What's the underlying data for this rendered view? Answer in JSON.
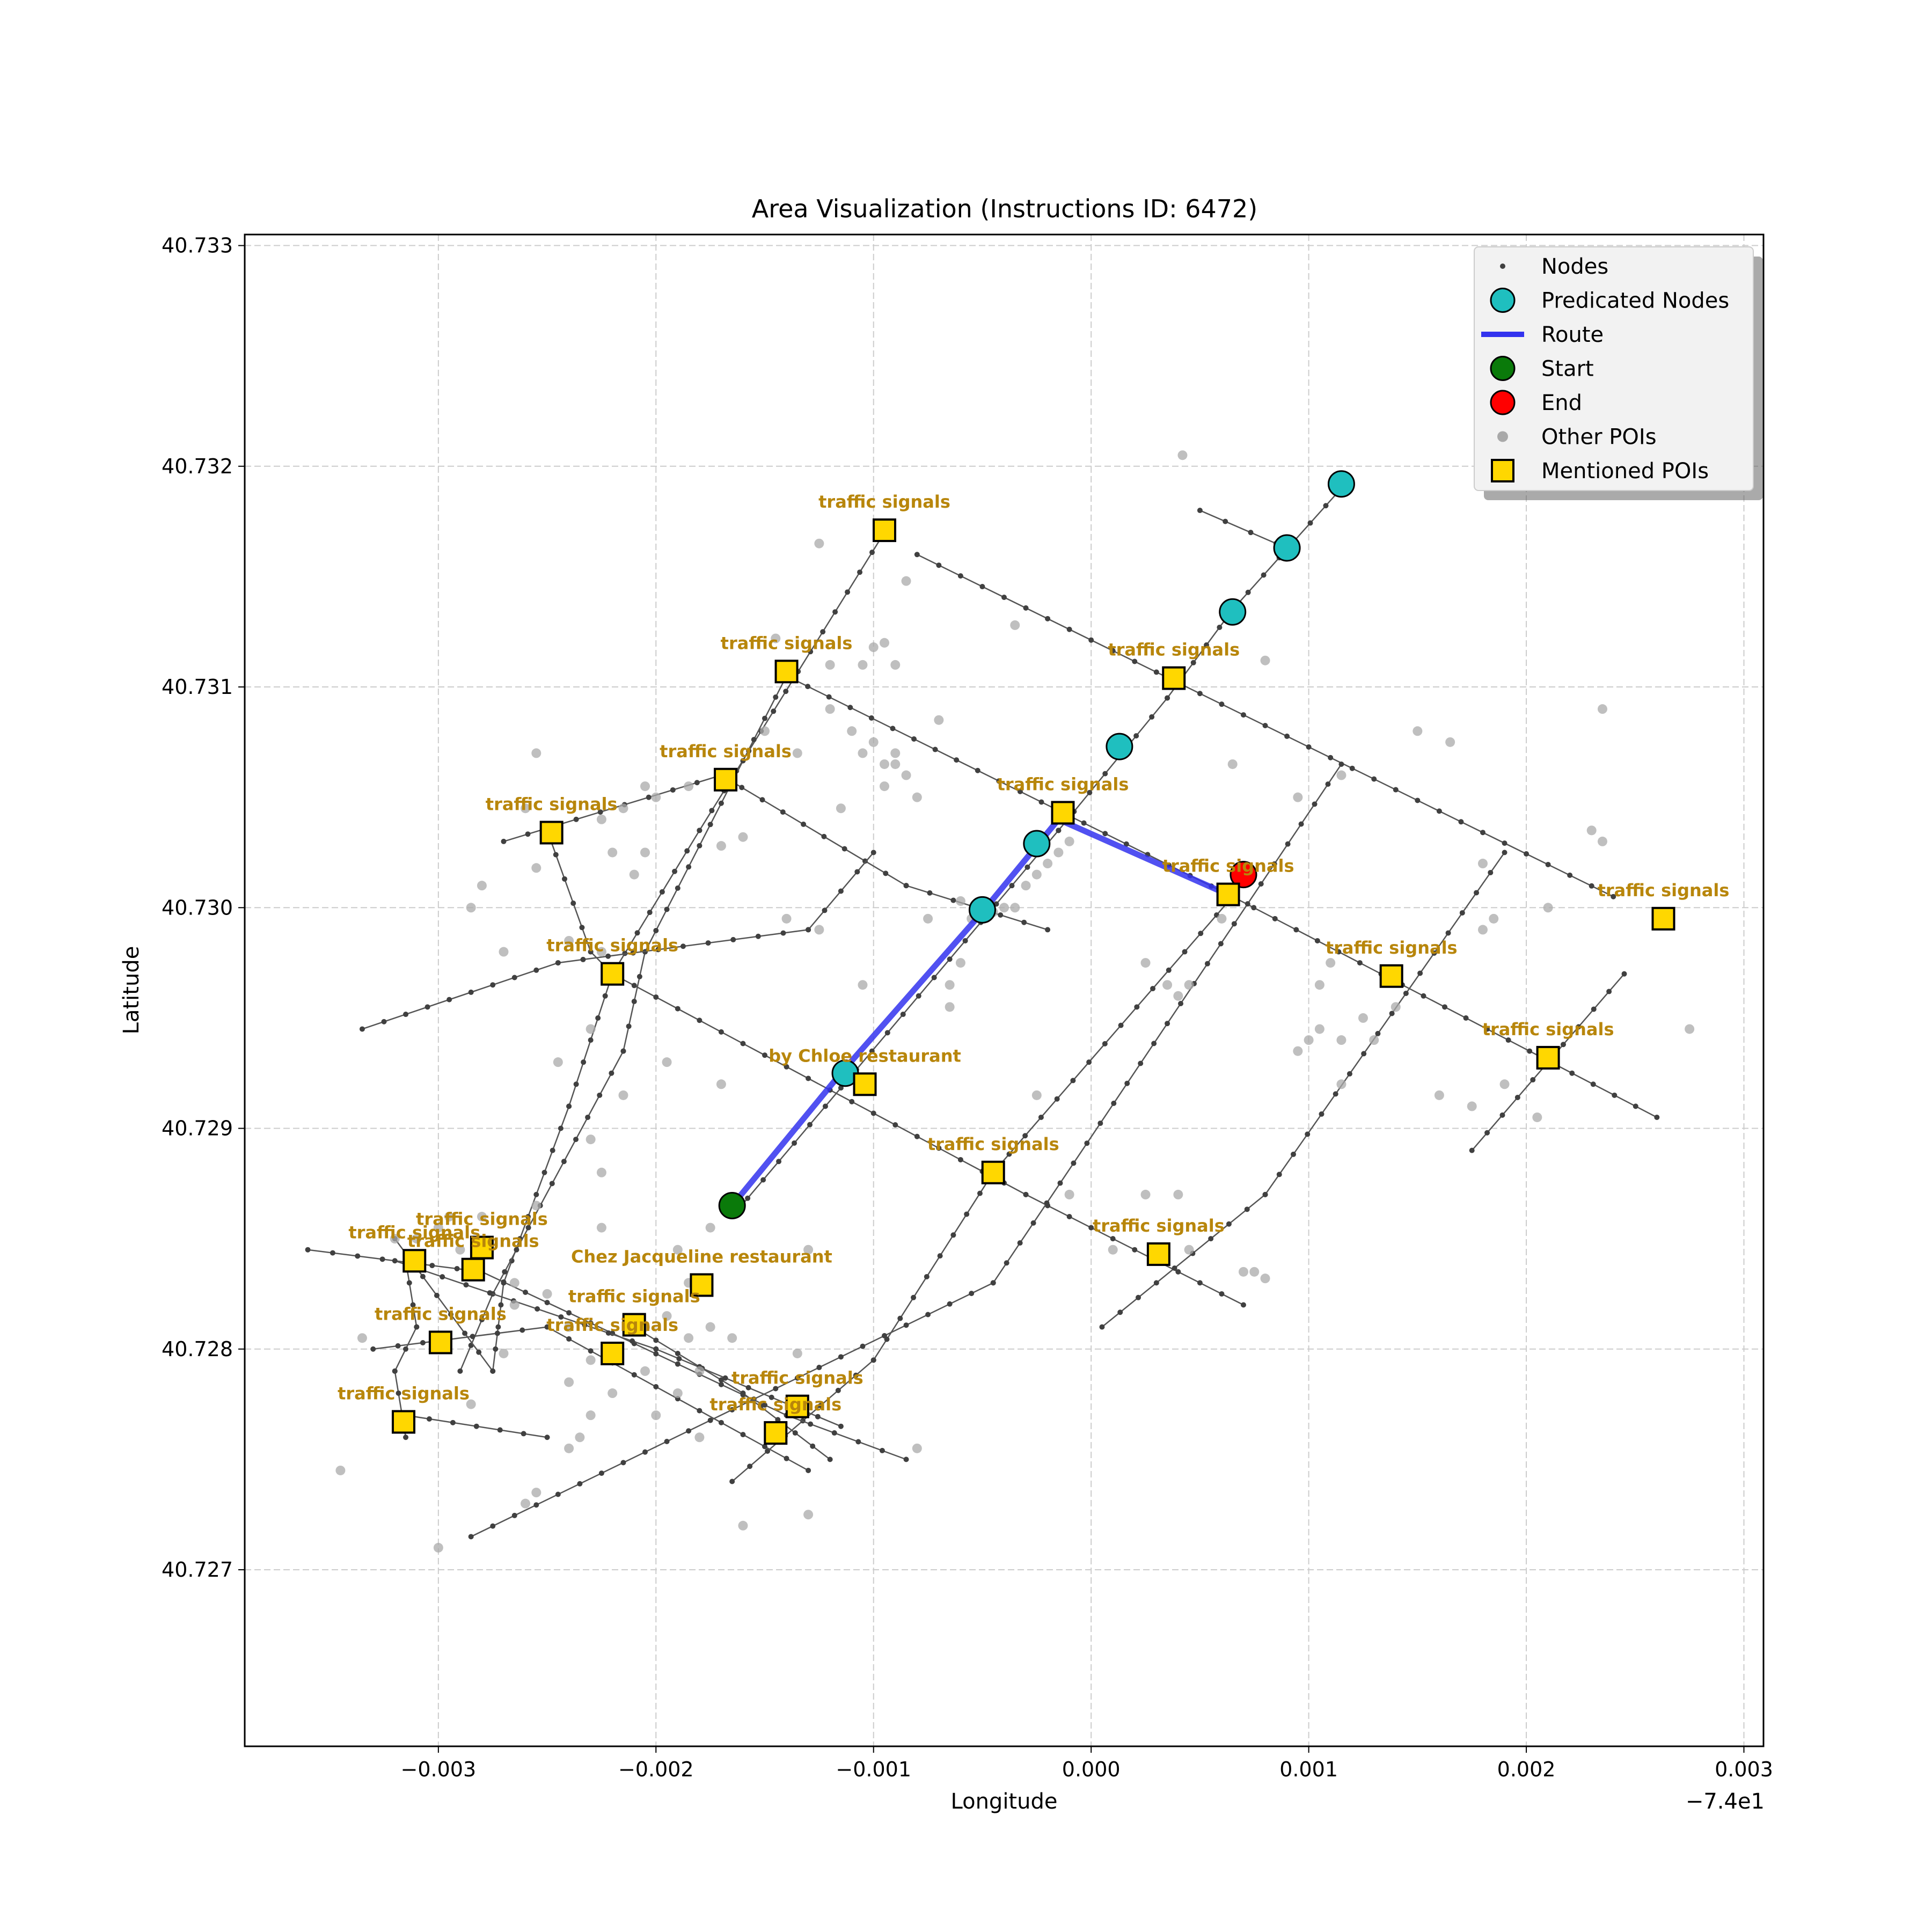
{
  "chart_data": {
    "type": "scatter",
    "title": "Area Visualization (Instructions ID: 6472)",
    "xlabel": "Longitude",
    "ylabel": "Latitude",
    "x_offset_label": "−7.4e1",
    "xlim": [
      -0.00389,
      0.00309
    ],
    "ylim": [
      40.7262,
      40.73305
    ],
    "xticks": [
      -0.003,
      -0.002,
      -0.001,
      0.0,
      0.001,
      0.002,
      0.003
    ],
    "xtick_labels": [
      "−0.003",
      "−0.002",
      "−0.001",
      "0.000",
      "0.001",
      "0.002",
      "0.003"
    ],
    "yticks": [
      40.727,
      40.728,
      40.729,
      40.73,
      40.731,
      40.732,
      40.733
    ],
    "ytick_labels": [
      "40.727",
      "40.728",
      "40.729",
      "40.730",
      "40.731",
      "40.732",
      "40.733"
    ],
    "grid": true,
    "legend_position": "top-right",
    "legend": [
      "Nodes",
      "Predicated Nodes",
      "Route",
      "Start",
      "End",
      "Other POIs",
      "Mentioned POIs"
    ],
    "colors": {
      "nodes": "#404040",
      "predicated": "#1fbfbf",
      "route": "#3333ee",
      "start": "#0a7a0a",
      "end": "#ff0000",
      "other_poi": "#a9a9a9",
      "mentioned_poi": "#ffd700",
      "poi_label": "#b8860b",
      "grid": "#cccccc"
    },
    "streets": [
      [
        [
          -0.00095,
          40.7317
        ],
        [
          -0.0018,
          40.73035
        ],
        [
          -0.0022,
          40.7297
        ],
        [
          -0.0024,
          40.7291
        ],
        [
          -0.0027,
          40.7283
        ],
        [
          -0.00275,
          40.7279
        ]
      ],
      [
        [
          -0.0014,
          40.73105
        ],
        [
          -0.00205,
          40.7298
        ],
        [
          -0.00215,
          40.72935
        ],
        [
          -0.00275,
          40.72825
        ],
        [
          -0.0029,
          40.7279
        ]
      ],
      [
        [
          -0.0027,
          40.7303
        ],
        [
          -0.0017,
          40.7306
        ],
        [
          -0.00085,
          40.7301
        ],
        [
          -0.0002,
          40.7299
        ]
      ],
      [
        [
          -0.00335,
          40.72945
        ],
        [
          -0.00245,
          40.72975
        ],
        [
          -0.0013,
          40.7299
        ],
        [
          -0.001,
          40.73025
        ]
      ],
      [
        [
          -0.0025,
          40.73035
        ],
        [
          -0.0023,
          40.7298
        ],
        [
          -0.0022,
          40.7297
        ]
      ],
      [
        [
          -0.00275,
          40.7279
        ],
        [
          -0.0032,
          40.7285
        ]
      ],
      [
        [
          -0.0008,
          40.7316
        ],
        [
          0.0024,
          40.73005
        ]
      ],
      [
        [
          -0.0014,
          40.73105
        ],
        [
          0.00065,
          40.73005
        ],
        [
          0.0026,
          40.72905
        ]
      ],
      [
        [
          -0.0022,
          40.7297
        ],
        [
          -0.0003,
          40.7287
        ],
        [
          0.0007,
          40.7282
        ]
      ],
      [
        [
          0.00115,
          40.7319
        ],
        [
          0.00065,
          40.73135
        ],
        [
          0.00035,
          40.73095
        ],
        [
          -0.00015,
          40.73035
        ],
        [
          -0.00165,
          40.7286
        ]
      ],
      [
        [
          0.0005,
          40.7318
        ],
        [
          0.00085,
          40.73165
        ]
      ],
      [
        [
          0.00065,
          40.73005
        ],
        [
          -0.00045,
          40.7288
        ],
        [
          -0.001,
          40.72795
        ],
        [
          -0.00165,
          40.7274
        ]
      ],
      [
        [
          0.00115,
          40.73065
        ],
        [
          -0.00045,
          40.7283
        ],
        [
          -0.00285,
          40.72715
        ]
      ],
      [
        [
          0.0019,
          40.73025
        ],
        [
          0.0008,
          40.7287
        ],
        [
          5e-05,
          40.7281
        ]
      ],
      [
        [
          0.00245,
          40.7297
        ],
        [
          0.00175,
          40.7289
        ]
      ],
      [
        [
          -0.0036,
          40.72845
        ],
        [
          -0.0028,
          40.72835
        ],
        [
          -0.0014,
          40.7277
        ],
        [
          -0.00085,
          40.7275
        ]
      ],
      [
        [
          -0.0032,
          40.7284
        ],
        [
          -0.002,
          40.728
        ],
        [
          -0.00115,
          40.72765
        ]
      ],
      [
        [
          -0.0033,
          40.728
        ],
        [
          -0.0025,
          40.7281
        ],
        [
          -0.0013,
          40.72745
        ]
      ],
      [
        [
          -0.00315,
          40.7284
        ],
        [
          -0.0031,
          40.7281
        ],
        [
          -0.0032,
          40.7279
        ],
        [
          -0.00315,
          40.7276
        ]
      ],
      [
        [
          -0.00315,
          40.7277
        ],
        [
          -0.0025,
          40.7276
        ]
      ],
      [
        [
          -0.0021,
          40.7281
        ],
        [
          -0.0016,
          40.7278
        ],
        [
          -0.0012,
          40.7275
        ]
      ]
    ],
    "route": [
      [
        -0.00165,
        40.72865
      ],
      [
        -0.00115,
        40.72925
      ],
      [
        -0.0005,
        40.72998
      ],
      [
        -0.00025,
        40.73028
      ],
      [
        -0.00015,
        40.7304
      ],
      [
        0.00065,
        40.73005
      ]
    ],
    "start": [
      -0.00165,
      40.72865
    ],
    "end": [
      0.0007,
      40.73015
    ],
    "predicated_nodes": [
      [
        0.00115,
        40.73192
      ],
      [
        0.0009,
        40.73163
      ],
      [
        0.00065,
        40.73134
      ],
      [
        0.00013,
        40.73073
      ],
      [
        -0.00025,
        40.73029
      ],
      [
        -0.0005,
        40.72999
      ],
      [
        -0.00113,
        40.72925
      ]
    ],
    "other_pois": [
      [
        0.00042,
        40.73205
      ],
      [
        -0.00125,
        40.73165
      ],
      [
        -0.00085,
        40.73148
      ],
      [
        -0.00035,
        40.73128
      ],
      [
        0.0008,
        40.73112
      ],
      [
        -0.00145,
        40.73122
      ],
      [
        -0.0012,
        40.7311
      ],
      [
        -0.00095,
        40.7312
      ],
      [
        -0.00105,
        40.7311
      ],
      [
        -0.001,
        40.73118
      ],
      [
        -0.0009,
        40.7311
      ],
      [
        -0.0012,
        40.7309
      ],
      [
        -0.0011,
        40.7308
      ],
      [
        -0.001,
        40.73075
      ],
      [
        -0.0007,
        40.73085
      ],
      [
        -0.0015,
        40.7308
      ],
      [
        -0.00135,
        40.7307
      ],
      [
        -0.00105,
        40.7307
      ],
      [
        -0.0009,
        40.73065
      ],
      [
        -0.00085,
        40.7306
      ],
      [
        -0.00095,
        40.73055
      ],
      [
        -0.0009,
        40.7307
      ],
      [
        -0.00095,
        40.73065
      ],
      [
        -0.0008,
        40.7305
      ],
      [
        -0.00115,
        40.73045
      ],
      [
        -0.0017,
        40.73028
      ],
      [
        -0.0016,
        40.73032
      ],
      [
        -0.00185,
        40.73055
      ],
      [
        -0.002,
        40.7305
      ],
      [
        -0.00205,
        40.73055
      ],
      [
        -0.00215,
        40.73045
      ],
      [
        -0.00225,
        40.7304
      ],
      [
        -0.00255,
        40.7307
      ],
      [
        -0.0026,
        40.73045
      ],
      [
        -0.00255,
        40.73018
      ],
      [
        -0.0028,
        40.7301
      ],
      [
        -0.00285,
        40.73
      ],
      [
        -0.0022,
        40.73025
      ],
      [
        -0.00205,
        40.73025
      ],
      [
        -0.0021,
        40.73015
      ],
      [
        -0.0024,
        40.72985
      ],
      [
        -0.00225,
        40.7298
      ],
      [
        -0.0027,
        40.7298
      ],
      [
        -0.0014,
        40.72995
      ],
      [
        -0.00125,
        40.7299
      ],
      [
        -0.00075,
        40.72995
      ],
      [
        -0.0006,
        40.73003
      ],
      [
        -0.00055,
        40.72995
      ],
      [
        -0.00035,
        40.73
      ],
      [
        -0.00045,
        40.72998
      ],
      [
        -0.0004,
        40.73
      ],
      [
        -0.0003,
        40.7301
      ],
      [
        -0.00025,
        40.73015
      ],
      [
        -0.0002,
        40.7302
      ],
      [
        -0.00015,
        40.73025
      ],
      [
        -0.0001,
        40.7303
      ],
      [
        -0.00105,
        40.72965
      ],
      [
        -0.00065,
        40.72965
      ],
      [
        -0.0006,
        40.72975
      ],
      [
        -0.00065,
        40.72955
      ],
      [
        -0.0023,
        40.72945
      ],
      [
        -0.00195,
        40.7293
      ],
      [
        -0.0017,
        40.7292
      ],
      [
        -0.00215,
        40.72915
      ],
      [
        -0.00245,
        40.7293
      ],
      [
        -0.00025,
        40.72915
      ],
      [
        -0.0023,
        40.72895
      ],
      [
        -0.00225,
        40.7288
      ],
      [
        -0.00255,
        40.72865
      ],
      [
        -0.00175,
        40.72855
      ],
      [
        -0.00225,
        40.72855
      ],
      [
        -0.0019,
        40.72845
      ],
      [
        -0.0013,
        40.72845
      ],
      [
        -0.00185,
        40.7283
      ],
      [
        -0.0025,
        40.72825
      ],
      [
        -0.0028,
        40.7286
      ],
      [
        -0.00295,
        40.7286
      ],
      [
        -0.003,
        40.72855
      ],
      [
        -0.0031,
        40.7285
      ],
      [
        -0.0032,
        40.7285
      ],
      [
        -0.0029,
        40.72845
      ],
      [
        -0.00265,
        40.7283
      ],
      [
        -0.00265,
        40.7282
      ],
      [
        -0.0024,
        40.7281
      ],
      [
        -0.00205,
        40.7281
      ],
      [
        -0.00195,
        40.72815
      ],
      [
        -0.00175,
        40.7281
      ],
      [
        -0.00185,
        40.72805
      ],
      [
        -0.00165,
        40.72805
      ],
      [
        -0.00335,
        40.72805
      ],
      [
        -0.0027,
        40.72798
      ],
      [
        -0.0023,
        40.72795
      ],
      [
        -0.00205,
        40.7279
      ],
      [
        -0.0018,
        40.7279
      ],
      [
        -0.00135,
        40.72798
      ],
      [
        -0.0024,
        40.72785
      ],
      [
        -0.0022,
        40.7278
      ],
      [
        -0.0019,
        40.7278
      ],
      [
        -0.0023,
        40.7277
      ],
      [
        -0.00285,
        40.72775
      ],
      [
        -0.002,
        40.7277
      ],
      [
        -0.0018,
        40.7276
      ],
      [
        -0.00235,
        40.7276
      ],
      [
        -0.0024,
        40.72755
      ],
      [
        -0.0008,
        40.72755
      ],
      [
        -0.00345,
        40.72745
      ],
      [
        -0.00255,
        40.72735
      ],
      [
        -0.0026,
        40.7273
      ],
      [
        -0.003,
        40.7271
      ],
      [
        -0.0016,
        40.7272
      ],
      [
        -0.0013,
        40.72725
      ],
      [
        -0.0001,
        40.7287
      ],
      [
        0.00025,
        40.7287
      ],
      [
        0.0004,
        40.7287
      ],
      [
        0.00045,
        40.72845
      ],
      [
        0.0001,
        40.72845
      ],
      [
        0.0007,
        40.72835
      ],
      [
        0.00075,
        40.72835
      ],
      [
        0.0008,
        40.72832
      ],
      [
        0.00025,
        40.72975
      ],
      [
        0.00035,
        40.72965
      ],
      [
        0.00045,
        40.72965
      ],
      [
        0.0004,
        40.7296
      ],
      [
        0.0006,
        40.72995
      ],
      [
        0.00095,
        40.7305
      ],
      [
        0.00115,
        40.7306
      ],
      [
        0.0015,
        40.7308
      ],
      [
        0.00165,
        40.73075
      ],
      [
        0.00235,
        40.7309
      ],
      [
        0.0023,
        40.73035
      ],
      [
        0.00235,
        40.7303
      ],
      [
        0.0018,
        40.7302
      ],
      [
        0.0021,
        40.73
      ],
      [
        0.00185,
        40.72995
      ],
      [
        0.0018,
        40.7299
      ],
      [
        0.0011,
        40.72975
      ],
      [
        0.00105,
        40.72965
      ],
      [
        0.00125,
        40.7295
      ],
      [
        0.00105,
        40.72945
      ],
      [
        0.00115,
        40.7294
      ],
      [
        0.0014,
        40.72955
      ],
      [
        0.0013,
        40.7294
      ],
      [
        0.001,
        40.7294
      ],
      [
        0.00095,
        40.72935
      ],
      [
        0.0016,
        40.72915
      ],
      [
        0.0019,
        40.7292
      ],
      [
        0.00205,
        40.72905
      ],
      [
        0.00175,
        40.7291
      ],
      [
        0.00115,
        40.7292
      ],
      [
        0.00275,
        40.72945
      ],
      [
        0.00065,
        40.73065
      ]
    ],
    "mentioned_pois": [
      {
        "name": "traffic signals",
        "pos": [
          -0.00095,
          40.73171
        ]
      },
      {
        "name": "traffic signals",
        "pos": [
          -0.0014,
          40.73107
        ]
      },
      {
        "name": "traffic signals",
        "pos": [
          0.00038,
          40.73104
        ]
      },
      {
        "name": "traffic signals",
        "pos": [
          -0.00168,
          40.73058
        ]
      },
      {
        "name": "traffic signals",
        "pos": [
          -0.00013,
          40.73043
        ]
      },
      {
        "name": "traffic signals",
        "pos": [
          -0.00248,
          40.73034
        ]
      },
      {
        "name": "traffic signals",
        "pos": [
          0.00063,
          40.73006
        ]
      },
      {
        "name": "traffic signals",
        "pos": [
          0.00263,
          40.72995
        ]
      },
      {
        "name": "traffic signals",
        "pos": [
          -0.0022,
          40.7297
        ]
      },
      {
        "name": "traffic signals",
        "pos": [
          0.00138,
          40.72969
        ]
      },
      {
        "name": "traffic signals",
        "pos": [
          0.0021,
          40.72932
        ]
      },
      {
        "name": "by Chloe restaurant",
        "pos": [
          -0.00104,
          40.7292
        ]
      },
      {
        "name": "traffic signals",
        "pos": [
          -0.00045,
          40.7288
        ]
      },
      {
        "name": "traffic signals",
        "pos": [
          0.00031,
          40.72843
        ]
      },
      {
        "name": "traffic signals",
        "pos": [
          -0.0028,
          40.72846
        ]
      },
      {
        "name": "traffic signals",
        "pos": [
          -0.00311,
          40.7284
        ]
      },
      {
        "name": "traffic signals",
        "pos": [
          -0.00284,
          40.72836
        ]
      },
      {
        "name": "Chez Jacqueline restaurant",
        "pos": [
          -0.00179,
          40.72829
        ]
      },
      {
        "name": "traffic signals",
        "pos": [
          -0.0021,
          40.72811
        ]
      },
      {
        "name": "traffic signals",
        "pos": [
          -0.00299,
          40.72803
        ]
      },
      {
        "name": "traffic signals",
        "pos": [
          -0.0022,
          40.72798
        ]
      },
      {
        "name": "traffic signals",
        "pos": [
          -0.00135,
          40.72774
        ]
      },
      {
        "name": "traffic signals",
        "pos": [
          -0.00145,
          40.72762
        ]
      },
      {
        "name": "traffic signals",
        "pos": [
          -0.00316,
          40.72767
        ]
      }
    ]
  }
}
